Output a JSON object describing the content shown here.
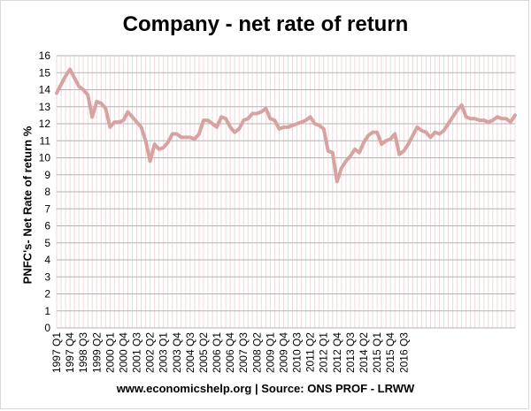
{
  "chart_data": {
    "type": "line",
    "title": "Company - net rate of return",
    "ylabel": "PNFC's- Net Rate of return %",
    "xlabel": "",
    "source": "www.economicshelp.org | Source: ONS PROF - LRWW",
    "ylim": [
      0,
      16
    ],
    "yticks": [
      "0",
      "1",
      "2",
      "3",
      "4",
      "5",
      "6",
      "7",
      "8",
      "9",
      "10",
      "11",
      "12",
      "13",
      "14",
      "15",
      "16"
    ],
    "grid": true,
    "legend": "none",
    "line_color": "#d6a3a0",
    "x_tick_labels": [
      "1997 Q1",
      "1997 Q4",
      "1998 Q3",
      "1999 Q2",
      "2000 Q1",
      "2000 Q4",
      "2001 Q3",
      "2002 Q2",
      "2003 Q1",
      "2003 Q4",
      "2004 Q3",
      "2005 Q2",
      "2006 Q1",
      "2006 Q4",
      "2007 Q3",
      "2008 Q2",
      "2009 Q1",
      "2009 Q4",
      "2010 Q3",
      "2011 Q2",
      "2012 Q1",
      "2012 Q4",
      "2013 Q3",
      "2014 Q2",
      "2015 Q1",
      "2015 Q4",
      "2016 Q3"
    ],
    "series": [
      {
        "values": [
          13.8,
          14.3,
          14.8,
          15.2,
          14.7,
          14.2,
          14.0,
          13.7,
          12.4,
          13.3,
          13.2,
          12.9,
          11.8,
          12.1,
          12.1,
          12.2,
          12.7,
          12.4,
          12.1,
          11.8,
          11.0,
          9.8,
          10.8,
          10.5,
          10.6,
          10.9,
          11.4,
          11.4,
          11.2,
          11.2,
          11.2,
          11.1,
          11.4,
          12.2,
          12.2,
          12.0,
          11.8,
          12.4,
          12.3,
          11.8,
          11.5,
          11.7,
          12.2,
          12.3,
          12.6,
          12.6,
          12.7,
          12.9,
          12.3,
          12.2,
          11.7,
          11.8,
          11.8,
          11.9,
          12.0,
          12.1,
          12.2,
          12.4,
          12.0,
          11.9,
          11.7,
          10.4,
          10.3,
          8.6,
          9.4,
          9.8,
          10.1,
          10.5,
          10.3,
          10.9,
          11.3,
          11.5,
          11.5,
          10.8,
          11.0,
          11.1,
          11.4,
          10.2,
          10.4,
          10.8,
          11.3,
          11.8,
          11.6,
          11.5,
          11.2,
          11.5,
          11.4,
          11.6,
          12.0,
          12.4,
          12.8,
          13.1,
          12.4,
          12.3,
          12.3,
          12.2,
          12.2,
          12.1,
          12.2,
          12.4,
          12.3,
          12.3,
          12.1,
          12.5
        ]
      }
    ]
  }
}
